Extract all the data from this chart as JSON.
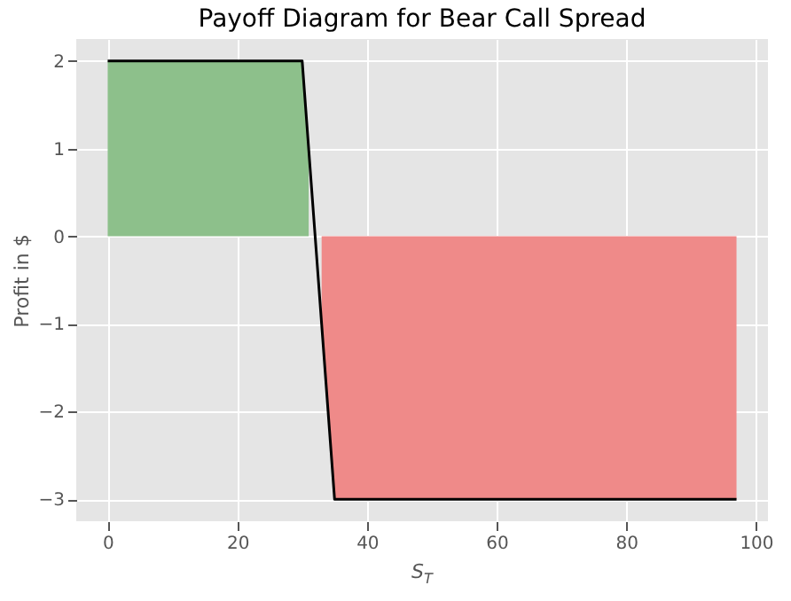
{
  "chart_data": {
    "type": "line",
    "title": "Payoff Diagram for Bear Call Spread",
    "xlabel": "S$_{T}$",
    "ylabel": "Profit in $",
    "series": [
      {
        "type": "area",
        "color": "#8dc08b",
        "x": [
          0,
          30,
          31
        ],
        "values": [
          2,
          2,
          1
        ]
      },
      {
        "type": "area",
        "color": "#ef8a89",
        "x": [
          33,
          35,
          97
        ],
        "values": [
          -1,
          -3,
          -3
        ]
      },
      {
        "color": "#000000",
        "x": [
          0,
          30,
          35,
          97
        ],
        "values": [
          2,
          2,
          -3,
          -3
        ]
      }
    ],
    "xlim": [
      -4.85,
      101.85
    ],
    "xticks": [
      0,
      20,
      40,
      60,
      80,
      100
    ],
    "ylim": [
      -3.25,
      2.25
    ],
    "yticks": [
      -3,
      -2,
      -1,
      0,
      1,
      2
    ],
    "grid": true,
    "legend": false
  }
}
